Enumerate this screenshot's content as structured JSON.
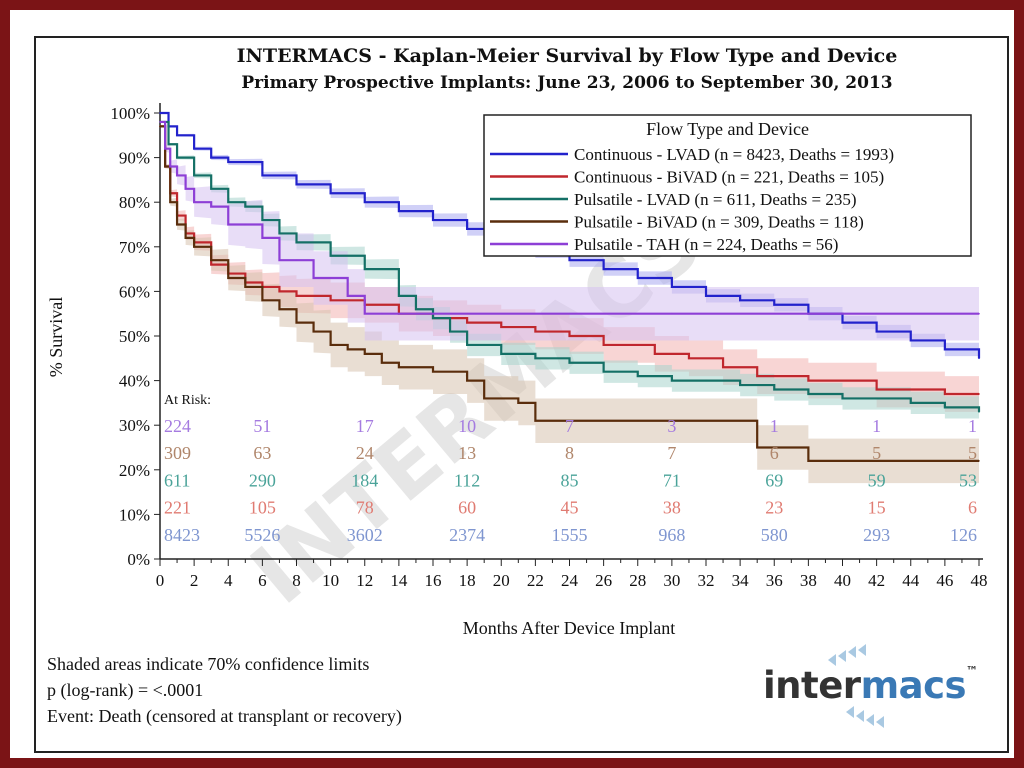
{
  "chart_data": {
    "type": "line",
    "title": "INTERMACS - Kaplan-Meier Survival by Flow Type and Device",
    "subtitle": "Primary Prospective Implants: June 23, 2006 to September 30, 2013",
    "xlabel": "Months After Device Implant",
    "ylabel": "% Survival",
    "xlim": [
      0,
      48
    ],
    "ylim": [
      0,
      100
    ],
    "x_ticks": [
      0,
      2,
      4,
      6,
      8,
      10,
      12,
      14,
      16,
      18,
      20,
      22,
      24,
      26,
      28,
      30,
      32,
      34,
      36,
      38,
      40,
      42,
      44,
      46,
      48
    ],
    "y_ticks": [
      "0%",
      "10%",
      "20%",
      "30%",
      "40%",
      "50%",
      "60%",
      "70%",
      "80%",
      "90%",
      "100%"
    ],
    "legend_title": "Flow Type and Device",
    "legend_placement": "top-right",
    "watermark": "INTERMACS",
    "series": [
      {
        "name": "Continuous - LVAD (n = 8423, Deaths = 1993)",
        "color": "#2222cc",
        "band_color": "#a9a9f0",
        "x": [
          0,
          0.5,
          1,
          2,
          3,
          4,
          6,
          8,
          10,
          12,
          14,
          16,
          18,
          20,
          22,
          24,
          26,
          28,
          30,
          32,
          34,
          36,
          38,
          40,
          42,
          44,
          46,
          48
        ],
        "y": [
          100,
          97,
          95,
          92,
          90,
          89,
          86,
          84,
          82,
          80,
          78,
          76,
          74,
          71,
          69,
          67,
          65,
          63,
          61,
          59,
          58,
          57,
          55,
          53,
          51,
          49,
          47,
          45
        ]
      },
      {
        "name": "Continuous - BiVAD (n = 221, Deaths = 105)",
        "color": "#c0272d",
        "band_color": "#f2b3b0",
        "x": [
          0,
          0.3,
          0.6,
          1,
          1.5,
          2,
          3,
          4,
          5,
          6,
          7,
          8,
          10,
          12,
          14,
          16,
          18,
          20,
          22,
          24,
          26,
          29,
          31,
          33,
          35,
          38,
          42,
          46,
          48
        ],
        "y": [
          97,
          88,
          82,
          77,
          73,
          71,
          66,
          64,
          62,
          61,
          60,
          59,
          58,
          57,
          55,
          54,
          53,
          52,
          51,
          50,
          48,
          46,
          45,
          43,
          41,
          40,
          38,
          37,
          37
        ]
      },
      {
        "name": "Pulsatile - LVAD (n = 611, Deaths = 235)",
        "color": "#147066",
        "band_color": "#a7d3cc",
        "x": [
          0,
          0.5,
          1,
          2,
          3,
          4,
          5,
          6,
          7,
          8,
          10,
          12,
          14,
          15,
          16,
          17,
          18,
          20,
          22,
          24,
          26,
          28,
          30,
          32,
          34,
          36,
          38,
          40,
          42,
          44,
          46,
          48
        ],
        "y": [
          98,
          93,
          90,
          86,
          83,
          80,
          79,
          76,
          73,
          71,
          68,
          65,
          59,
          56,
          54,
          51,
          48,
          46,
          45,
          44,
          42,
          41,
          40,
          40,
          39,
          38,
          37,
          36,
          36,
          35,
          34,
          33
        ]
      },
      {
        "name": "Pulsatile - BiVAD (n = 309, Deaths = 118)",
        "color": "#5a2d0c",
        "band_color": "#d7c2ae",
        "x": [
          0,
          0.3,
          0.6,
          1,
          1.5,
          2,
          3,
          4,
          5,
          6,
          7,
          8,
          9,
          10,
          11,
          12,
          13,
          14,
          16,
          18,
          19,
          21,
          22,
          25,
          28,
          32,
          34,
          35,
          36,
          38,
          42,
          48
        ],
        "y": [
          97,
          88,
          80,
          75,
          72,
          70,
          67,
          63,
          61,
          58,
          56,
          53,
          51,
          48,
          47,
          46,
          44,
          43,
          42,
          40,
          36,
          35,
          31,
          31,
          31,
          31,
          31,
          25,
          25,
          22,
          22,
          22
        ]
      },
      {
        "name": "Pulsatile - TAH (n = 224, Deaths = 56)",
        "color": "#8d3fd6",
        "band_color": "#d6c1f0",
        "x": [
          0,
          0.3,
          0.6,
          1,
          1.5,
          2,
          3,
          4,
          5,
          6,
          7,
          8,
          9,
          10,
          11,
          12,
          13,
          18,
          24,
          30,
          36,
          42,
          48
        ],
        "y": [
          98,
          92,
          88,
          86,
          83,
          80,
          79,
          75,
          75,
          72,
          67,
          67,
          63,
          63,
          59,
          55,
          55,
          55,
          55,
          55,
          55,
          55,
          55
        ]
      }
    ],
    "at_risk": {
      "label": "At Risk:",
      "months": [
        0,
        6,
        12,
        18,
        24,
        30,
        36,
        42,
        48
      ],
      "rows": [
        {
          "series": "Pulsatile - TAH",
          "color": "#a57be0",
          "values": [
            "224",
            "51",
            "17",
            "10",
            "7",
            "3",
            "1",
            "1",
            "1"
          ]
        },
        {
          "series": "Pulsatile - BiVAD",
          "color": "#b0866b",
          "values": [
            "309",
            "63",
            "24",
            "13",
            "8",
            "7",
            "6",
            "5",
            "5"
          ]
        },
        {
          "series": "Pulsatile - LVAD",
          "color": "#4aa399",
          "values": [
            "611",
            "290",
            "184",
            "112",
            "85",
            "71",
            "69",
            "59",
            "53"
          ]
        },
        {
          "series": "Continuous - BiVAD",
          "color": "#e07b72",
          "values": [
            "221",
            "105",
            "78",
            "60",
            "45",
            "38",
            "23",
            "15",
            "6"
          ]
        },
        {
          "series": "Continuous - LVAD",
          "color": "#7f96d0",
          "values": [
            "8423",
            "5526",
            "3602",
            "2374",
            "1555",
            "968",
            "580",
            "293",
            "126"
          ]
        }
      ]
    }
  },
  "footnotes": {
    "line1": "Shaded areas indicate 70% confidence limits",
    "line2": "p (log-rank) = <.0001",
    "line3": "Event: Death (censored at transplant or recovery)"
  },
  "logo": {
    "text_dark": "inter",
    "text_blue": "macs",
    "text_tm": "™",
    "color_dark": "#333333",
    "color_blue": "#3a79b5"
  }
}
